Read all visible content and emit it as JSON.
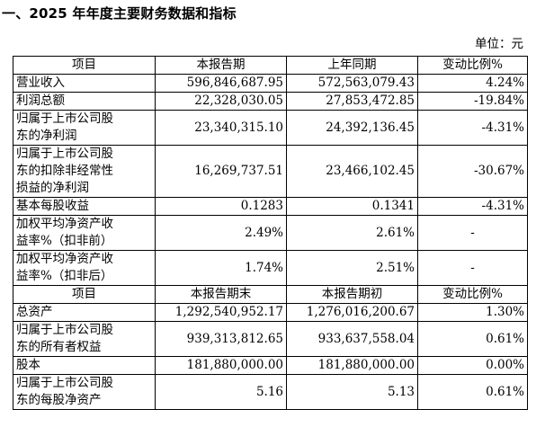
{
  "section_title": "一、2025 年年度主要财务数据和指标",
  "unit": "单位：元",
  "table1": {
    "headers": [
      "项目",
      "本报告期",
      "上年同期",
      "变动比例%"
    ],
    "rows": [
      {
        "label_lines": [
          "营业收入"
        ],
        "current": "596,846,687.95",
        "prior": "572,563,079.43",
        "change": "4.24%"
      },
      {
        "label_lines": [
          "利润总额"
        ],
        "current": "22,328,030.05",
        "prior": "27,853,472.85",
        "change": "-19.84%"
      },
      {
        "label_lines": [
          "归属于上市公司股",
          "东的净利润"
        ],
        "current": "23,340,315.10",
        "prior": "24,392,136.45",
        "change": "-4.31%"
      },
      {
        "label_lines": [
          "归属于上市公司股",
          "东的扣除非经常性",
          "损益的净利润"
        ],
        "current": "16,269,737.51",
        "prior": "23,466,102.45",
        "change": "-30.67%"
      },
      {
        "label_lines": [
          "基本每股收益"
        ],
        "current": "0.1283",
        "prior": "0.1341",
        "change": "-4.31%"
      },
      {
        "label_lines": [
          "加权平均净资产收",
          "益率%（扣非前）"
        ],
        "current": "2.49%",
        "prior": "2.61%",
        "change": "-"
      },
      {
        "label_lines": [
          "加权平均净资产收",
          "益率%（扣非后）"
        ],
        "current": "1.74%",
        "prior": "2.51%",
        "change": "-"
      }
    ]
  },
  "table2": {
    "headers": [
      "项目",
      "本报告期末",
      "本报告期初",
      "变动比例%"
    ],
    "rows": [
      {
        "label_lines": [
          "总资产"
        ],
        "current": "1,292,540,952.17",
        "prior": "1,276,016,200.67",
        "change": "1.30%"
      },
      {
        "label_lines": [
          "归属于上市公司股",
          "东的所有者权益"
        ],
        "current": "939,313,812.65",
        "prior": "933,637,558.04",
        "change": "0.61%"
      },
      {
        "label_lines": [
          "股本"
        ],
        "current": "181,880,000.00",
        "prior": "181,880,000.00",
        "change": "0.00%"
      },
      {
        "label_lines": [
          "归属于上市公司股",
          "东的每股净资产"
        ],
        "current": "5.16",
        "prior": "5.13",
        "change": "0.61%"
      }
    ]
  }
}
